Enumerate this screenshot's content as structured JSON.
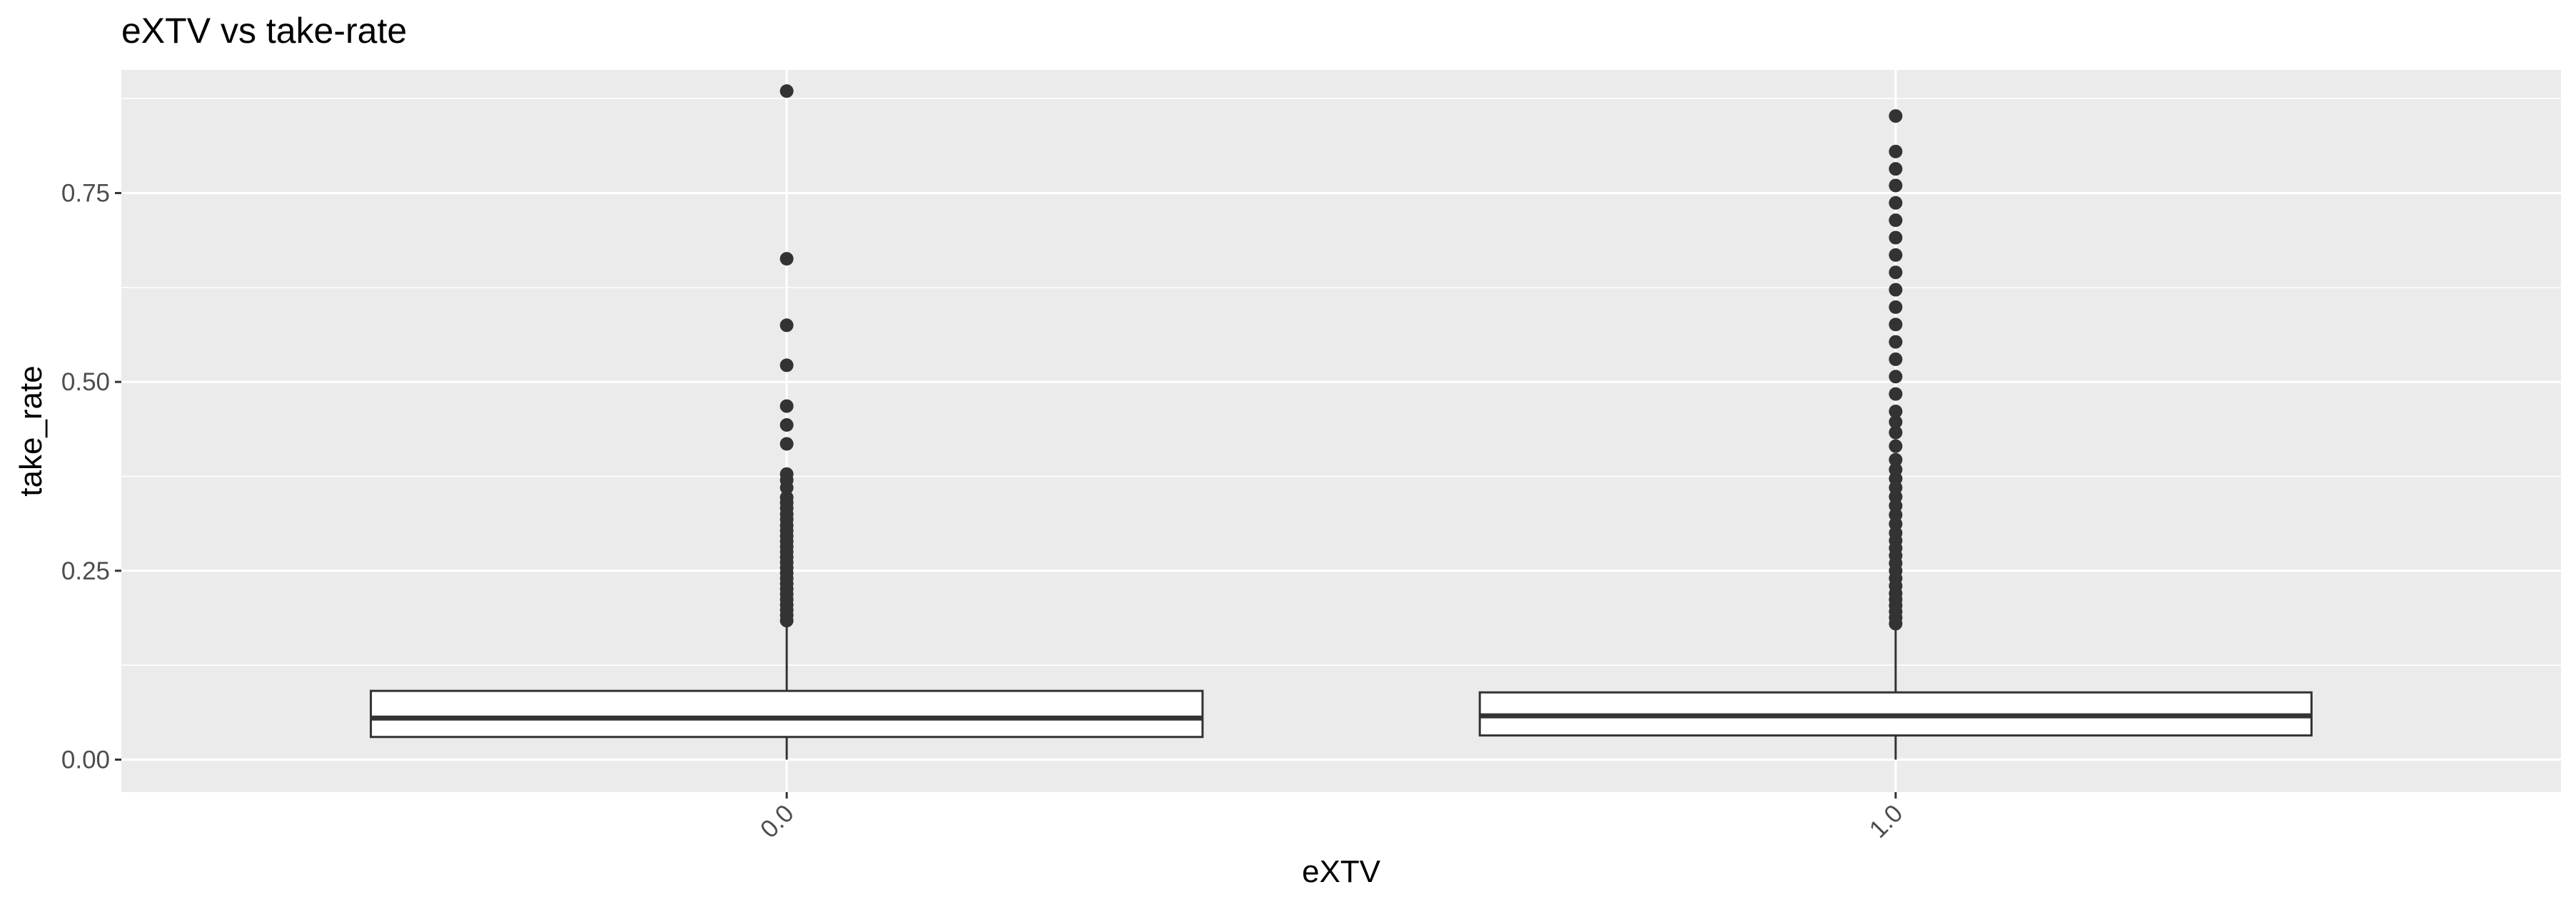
{
  "chart_data": {
    "type": "boxplot",
    "title": "eXTV vs take-rate",
    "xlabel": "eXTV",
    "ylabel": "take_rate",
    "categories": [
      "0.0",
      "1.0"
    ],
    "ylim": [
      -0.043,
      0.913
    ],
    "yticks": [
      0.0,
      0.25,
      0.5,
      0.75
    ],
    "ytick_labels": [
      "0.00",
      "0.25",
      "0.50",
      "0.75"
    ],
    "grid": true,
    "legend": "none",
    "colors": {
      "panel": "#ebebeb",
      "grid": "#ffffff",
      "box_fill": "#ffffff",
      "box_line": "#333333",
      "outlier": "#333333"
    },
    "boxes": [
      {
        "category": "0.0",
        "lower_whisker": 0.0,
        "q1": 0.03,
        "median": 0.055,
        "q3": 0.091,
        "upper_whisker": 0.18,
        "outliers": [
          0.885,
          0.663,
          0.575,
          0.522,
          0.468,
          0.443,
          0.418,
          0.378,
          0.37,
          0.36,
          0.347,
          0.34,
          0.333,
          0.325,
          0.318,
          0.31,
          0.303,
          0.296,
          0.289,
          0.282,
          0.275,
          0.268,
          0.261,
          0.254,
          0.247,
          0.24,
          0.233,
          0.226,
          0.219,
          0.212,
          0.205,
          0.198,
          0.191,
          0.184
        ]
      },
      {
        "category": "1.0",
        "lower_whisker": 0.0,
        "q1": 0.032,
        "median": 0.058,
        "q3": 0.089,
        "upper_whisker": 0.175,
        "outliers": [
          0.852,
          0.805,
          0.782,
          0.76,
          0.737,
          0.714,
          0.691,
          0.668,
          0.645,
          0.622,
          0.599,
          0.576,
          0.553,
          0.53,
          0.507,
          0.484,
          0.461,
          0.447,
          0.433,
          0.415,
          0.397,
          0.384,
          0.372,
          0.36,
          0.348,
          0.336,
          0.324,
          0.312,
          0.3,
          0.29,
          0.28,
          0.27,
          0.26,
          0.25,
          0.24,
          0.23,
          0.22,
          0.212,
          0.204,
          0.196,
          0.188,
          0.18
        ]
      }
    ]
  }
}
